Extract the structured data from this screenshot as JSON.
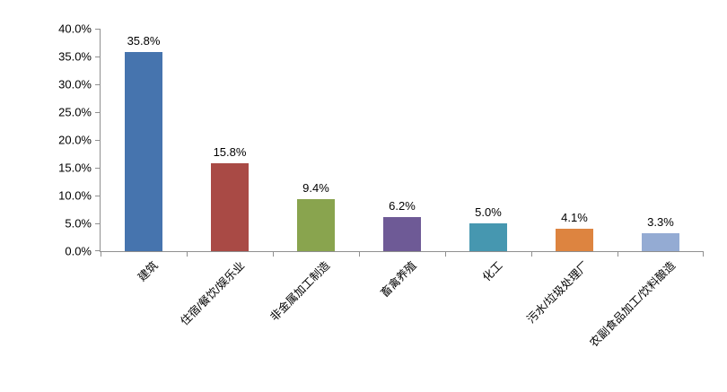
{
  "chart_data": {
    "type": "bar",
    "title": "",
    "xlabel": "",
    "ylabel": "",
    "legend": false,
    "grid": false,
    "ylim": [
      0,
      40
    ],
    "y_tick_labels": [
      "0.0%",
      "5.0%",
      "10.0%",
      "15.0%",
      "20.0%",
      "25.0%",
      "30.0%",
      "35.0%",
      "40.0%"
    ],
    "categories": [
      "建筑",
      "住宿/餐饮/娱乐业",
      "非金属加工制造",
      "畜禽养殖",
      "化工",
      "污水/垃圾处理厂",
      "农副食品加工/饮料酿造"
    ],
    "values": [
      35.8,
      15.8,
      9.4,
      6.2,
      5.0,
      4.1,
      3.3
    ],
    "data_labels": [
      "35.8%",
      "15.8%",
      "9.4%",
      "6.2%",
      "5.0%",
      "4.1%",
      "3.3%"
    ],
    "bar_colors": [
      "#4674AE",
      "#A94A45",
      "#89A44E",
      "#6E5A96",
      "#4697B0",
      "#DD8440",
      "#94ABD3"
    ],
    "axis_color": "#8f8f8f",
    "label_rotation_deg": 45,
    "legend_position": "none"
  }
}
